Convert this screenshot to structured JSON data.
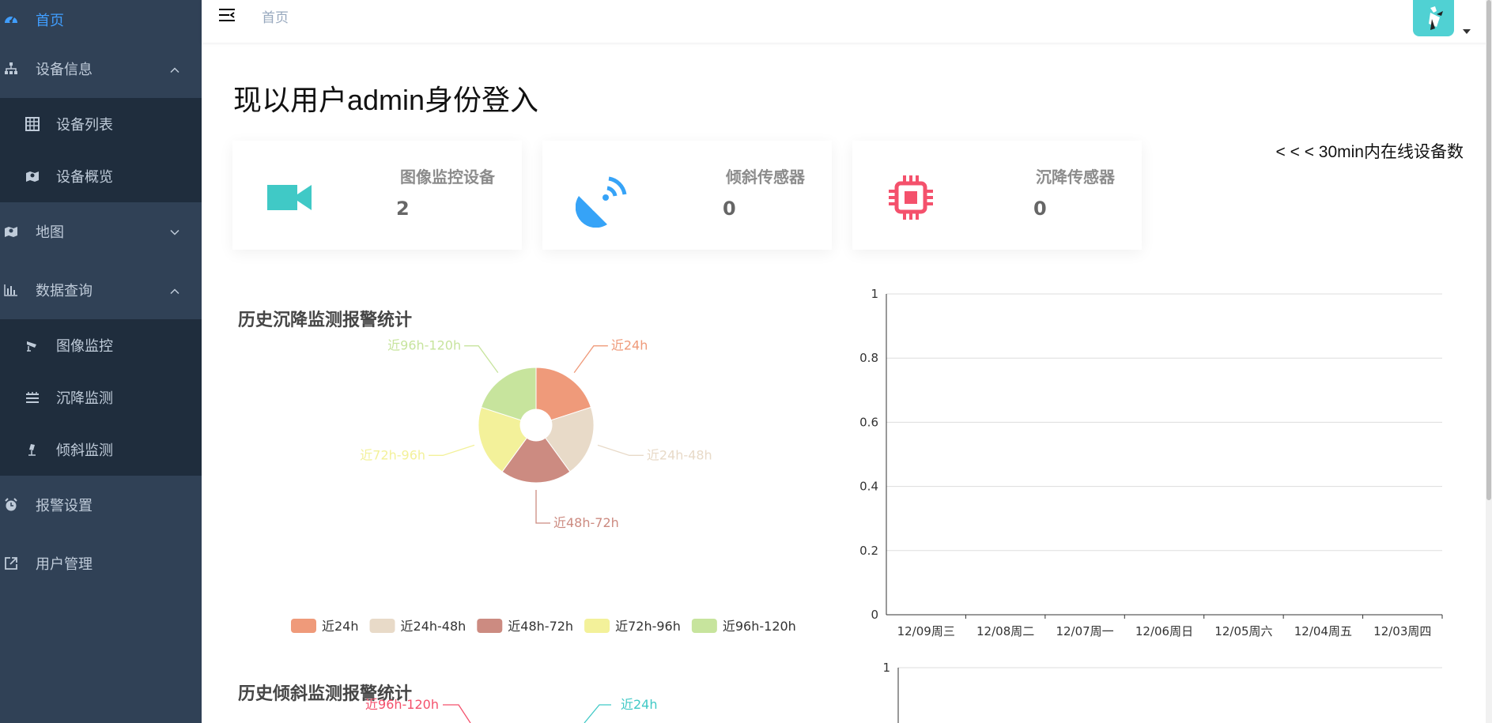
{
  "sidebar": {
    "menu": [
      {
        "label": "首页",
        "icon": "dashboard-icon",
        "active": true
      },
      {
        "label": "设备信息",
        "icon": "tree-icon",
        "expanded": true,
        "children": [
          {
            "label": "设备列表",
            "icon": "table-icon"
          },
          {
            "label": "设备概览",
            "icon": "map-icon"
          }
        ]
      },
      {
        "label": "地图",
        "icon": "map-icon",
        "expanded": false
      },
      {
        "label": "数据查询",
        "icon": "chart-icon",
        "expanded": true,
        "children": [
          {
            "label": "图像监控",
            "icon": "camera-icon"
          },
          {
            "label": "沉降监测",
            "icon": "list-icon"
          },
          {
            "label": "倾斜监测",
            "icon": "tilt-icon"
          }
        ]
      },
      {
        "label": "报警设置",
        "icon": "alarm-icon"
      },
      {
        "label": "用户管理",
        "icon": "external-link-icon"
      }
    ]
  },
  "navbar": {
    "breadcrumb": "首页"
  },
  "main": {
    "welcome": "现以用户admin身份登入",
    "online_label": "< < < 30min内在线设备数",
    "cards": [
      {
        "title": "图像监控设备",
        "value": "2",
        "icon": "video-camera-icon",
        "color": "#40c9c6"
      },
      {
        "title": "倾斜传感器",
        "value": "0",
        "icon": "satellite-dish-icon",
        "color": "#36a3f7"
      },
      {
        "title": "沉降传感器",
        "value": "0",
        "icon": "chip-icon",
        "color": "#f4516c"
      }
    ]
  },
  "chart_data": [
    {
      "type": "pie",
      "title": "历史沉降监测报警统计",
      "style": "donut",
      "categories": [
        "近24h",
        "近24h-48h",
        "近48h-72h",
        "近72h-96h",
        "近96h-120h"
      ],
      "values": [
        1,
        1,
        1,
        1,
        1
      ],
      "colors": [
        "#ef9a7a",
        "#e8dac8",
        "#cc8b81",
        "#f3f19a",
        "#c7e49d"
      ],
      "legend": "bottom"
    },
    {
      "type": "line",
      "x": [
        "12/09周三",
        "12/08周二",
        "12/07周一",
        "12/06周日",
        "12/05周六",
        "12/04周五",
        "12/03周四"
      ],
      "series": [],
      "ylim": [
        0,
        1
      ],
      "yticks": [
        "0",
        "0.2",
        "0.4",
        "0.6",
        "0.8",
        "1"
      ],
      "grid": true
    },
    {
      "type": "pie",
      "title": "历史倾斜监测报警统计",
      "style": "donut",
      "categories": [
        "近24h",
        "近96h-120h"
      ],
      "colors": [
        "#40c9c6",
        "#f4516c"
      ]
    },
    {
      "type": "line",
      "yticks": [
        "1"
      ]
    }
  ]
}
